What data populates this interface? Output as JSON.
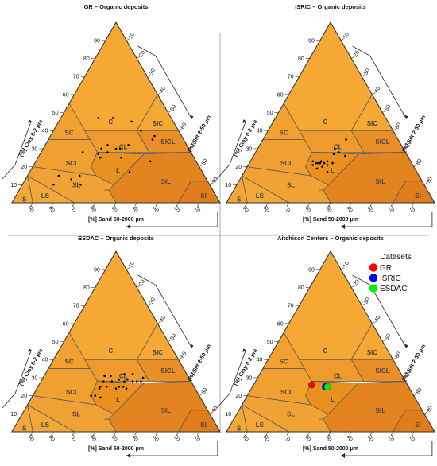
{
  "chart_data": [
    {
      "type": "ternary",
      "title": "GR – Organic deposits",
      "axes": {
        "clay": {
          "label": "[%] Clay 0-2 μm",
          "ticks": [
            10,
            20,
            30,
            40,
            50,
            60,
            70,
            80,
            90
          ]
        },
        "silt": {
          "label": "[%] Silt 2-50 μm",
          "ticks": [
            10,
            20,
            30,
            40,
            50,
            60,
            70,
            80,
            90
          ]
        },
        "sand": {
          "label": "[%] Sand 50-2000 μm",
          "ticks": [
            90,
            80,
            70,
            60,
            50,
            40,
            30,
            20,
            10
          ]
        }
      },
      "classes": [
        "C",
        "SIC",
        "SC",
        "CL",
        "SICL",
        "SCL",
        "L",
        "SL",
        "SIL",
        "LS",
        "S",
        "SI"
      ],
      "series": [
        {
          "points": [
            {
              "sand": 35,
              "silt": 18,
              "clay": 47
            },
            {
              "sand": 28,
              "silt": 25,
              "clay": 47
            },
            {
              "sand": 20,
              "silt": 35,
              "clay": 45
            },
            {
              "sand": 18,
              "silt": 42,
              "clay": 40
            },
            {
              "sand": 15,
              "silt": 50,
              "clay": 35
            },
            {
              "sand": 13,
              "silt": 50,
              "clay": 37
            },
            {
              "sand": 52,
              "silt": 20,
              "clay": 28
            },
            {
              "sand": 45,
              "silt": 28,
              "clay": 27
            },
            {
              "sand": 40,
              "silt": 32,
              "clay": 28
            },
            {
              "sand": 35,
              "silt": 35,
              "clay": 30
            },
            {
              "sand": 33,
              "silt": 37,
              "clay": 30
            },
            {
              "sand": 38,
              "silt": 30,
              "clay": 32
            },
            {
              "sand": 42,
              "silt": 28,
              "clay": 30
            },
            {
              "sand": 28,
              "silt": 40,
              "clay": 32
            },
            {
              "sand": 45,
              "silt": 30,
              "clay": 25
            },
            {
              "sand": 35,
              "silt": 40,
              "clay": 25
            },
            {
              "sand": 70,
              "silt": 15,
              "clay": 15
            },
            {
              "sand": 65,
              "silt": 22,
              "clay": 13
            },
            {
              "sand": 75,
              "silt": 15,
              "clay": 10
            },
            {
              "sand": 62,
              "silt": 28,
              "clay": 10
            },
            {
              "sand": 60,
              "silt": 25,
              "clay": 15
            },
            {
              "sand": 35,
              "silt": 48,
              "clay": 17
            },
            {
              "sand": 22,
              "silt": 55,
              "clay": 23
            }
          ]
        }
      ]
    },
    {
      "type": "ternary",
      "title": "ISRIC – Organic deposits",
      "axes": {
        "clay": {
          "label": "[%] Clay 0-2 μm",
          "ticks": [
            10,
            20,
            30,
            40,
            50,
            60,
            70,
            80,
            90
          ]
        },
        "silt": {
          "label": "[%] Silt 2-50 μm",
          "ticks": [
            10,
            20,
            30,
            40,
            50,
            60,
            70,
            80,
            90
          ]
        },
        "sand": {
          "label": "[%] Sand 50-2000 μm",
          "ticks": [
            90,
            80,
            70,
            60,
            50,
            40,
            30,
            20,
            10
          ]
        }
      },
      "classes": [
        "C",
        "SIC",
        "SC",
        "CL",
        "SICL",
        "SCL",
        "L",
        "SL",
        "SIL",
        "LS",
        "S",
        "SI"
      ],
      "series": [
        {
          "points": [
            {
              "sand": 47,
              "silt": 30,
              "clay": 23
            },
            {
              "sand": 45,
              "silt": 33,
              "clay": 22
            },
            {
              "sand": 43,
              "silt": 34,
              "clay": 23
            },
            {
              "sand": 48,
              "silt": 31,
              "clay": 21
            },
            {
              "sand": 42,
              "silt": 36,
              "clay": 22
            },
            {
              "sand": 40,
              "silt": 37,
              "clay": 23
            },
            {
              "sand": 44,
              "silt": 34,
              "clay": 22
            },
            {
              "sand": 46,
              "silt": 32,
              "clay": 22
            },
            {
              "sand": 41,
              "silt": 38,
              "clay": 21
            },
            {
              "sand": 38,
              "silt": 40,
              "clay": 22
            },
            {
              "sand": 44,
              "silt": 36,
              "clay": 20
            },
            {
              "sand": 47,
              "silt": 34,
              "clay": 19
            },
            {
              "sand": 33,
              "silt": 37,
              "clay": 30
            },
            {
              "sand": 32,
              "silt": 40,
              "clay": 28
            },
            {
              "sand": 35,
              "silt": 38,
              "clay": 27
            },
            {
              "sand": 25,
              "silt": 40,
              "clay": 35
            },
            {
              "sand": 30,
              "silt": 44,
              "clay": 26
            },
            {
              "sand": 43,
              "silt": 40,
              "clay": 17
            }
          ]
        }
      ]
    },
    {
      "type": "ternary",
      "title": "ESDAC – Organic deposits",
      "axes": {
        "clay": {
          "label": "[%] Clay 0-2 μm",
          "ticks": [
            10,
            20,
            30,
            40,
            50,
            60,
            70,
            80,
            90
          ]
        },
        "silt": {
          "label": "[%] Silt 2-50 μm",
          "ticks": [
            10,
            20,
            30,
            40,
            50,
            60,
            70,
            80,
            90
          ]
        },
        "sand": {
          "label": "[%] Sand 50-2000 μm",
          "ticks": [
            90,
            80,
            70,
            60,
            50,
            40,
            30,
            20,
            10
          ]
        }
      },
      "classes": [
        "C",
        "SIC",
        "SC",
        "CL",
        "SICL",
        "SCL",
        "L",
        "SL",
        "SIL",
        "LS",
        "S",
        "SI"
      ],
      "series": [
        {
          "points": [
            {
              "sand": 40,
              "silt": 29,
              "clay": 31
            },
            {
              "sand": 37,
              "silt": 32,
              "clay": 31
            },
            {
              "sand": 42,
              "silt": 30,
              "clay": 28
            },
            {
              "sand": 38,
              "silt": 34,
              "clay": 28
            },
            {
              "sand": 34,
              "silt": 37,
              "clay": 29
            },
            {
              "sand": 32,
              "silt": 40,
              "clay": 28
            },
            {
              "sand": 30,
              "silt": 41,
              "clay": 29
            },
            {
              "sand": 28,
              "silt": 44,
              "clay": 28
            },
            {
              "sand": 26,
              "silt": 46,
              "clay": 28
            },
            {
              "sand": 24,
              "silt": 48,
              "clay": 28
            },
            {
              "sand": 22,
              "silt": 48,
              "clay": 30
            },
            {
              "sand": 45,
              "silt": 30,
              "clay": 25
            },
            {
              "sand": 42,
              "silt": 33,
              "clay": 25
            },
            {
              "sand": 38,
              "silt": 38,
              "clay": 24
            },
            {
              "sand": 34,
              "silt": 41,
              "clay": 25
            },
            {
              "sand": 52,
              "silt": 28,
              "clay": 20
            },
            {
              "sand": 50,
              "silt": 30,
              "clay": 20
            },
            {
              "sand": 48,
              "silt": 33,
              "clay": 19
            },
            {
              "sand": 46,
              "silt": 30,
              "clay": 24
            },
            {
              "sand": 36,
              "silt": 39,
              "clay": 25
            },
            {
              "sand": 30,
              "silt": 38,
              "clay": 32
            },
            {
              "sand": 26,
              "silt": 42,
              "clay": 32
            },
            {
              "sand": 33,
              "silt": 43,
              "clay": 24
            }
          ]
        }
      ]
    },
    {
      "type": "ternary",
      "title": "Aitchison Centers – Organic deposits",
      "axes": {
        "clay": {
          "label": "[%] Clay 0-2 μm",
          "ticks": [
            10,
            20,
            30,
            40,
            50,
            60,
            70,
            80,
            90
          ]
        },
        "silt": {
          "label": "[%] Silt 2-50 μm",
          "ticks": [
            10,
            20,
            30,
            40,
            50,
            60,
            70,
            80,
            90
          ]
        },
        "sand": {
          "label": "[%] Sand 50-2000 μm",
          "ticks": [
            90,
            80,
            70,
            60,
            50,
            40,
            30,
            20,
            10
          ]
        }
      },
      "classes": [
        "C",
        "SIC",
        "SC",
        "CL",
        "SICL",
        "SCL",
        "L",
        "SL",
        "SIL",
        "LS",
        "S",
        "SI"
      ],
      "legend": {
        "title": "Datasets",
        "placement": "top-right"
      },
      "series": [
        {
          "name": "GR",
          "color": "#ff0000",
          "points": [
            {
              "sand": 46,
              "silt": 28,
              "clay": 26
            }
          ]
        },
        {
          "name": "ISRIC",
          "color": "#0000ff",
          "points": [
            {
              "sand": 40,
              "silt": 35,
              "clay": 25
            }
          ]
        },
        {
          "name": "ESDAC",
          "color": "#00ee00",
          "points": [
            {
              "sand": 39,
              "silt": 36,
              "clay": 25
            }
          ]
        }
      ]
    }
  ]
}
